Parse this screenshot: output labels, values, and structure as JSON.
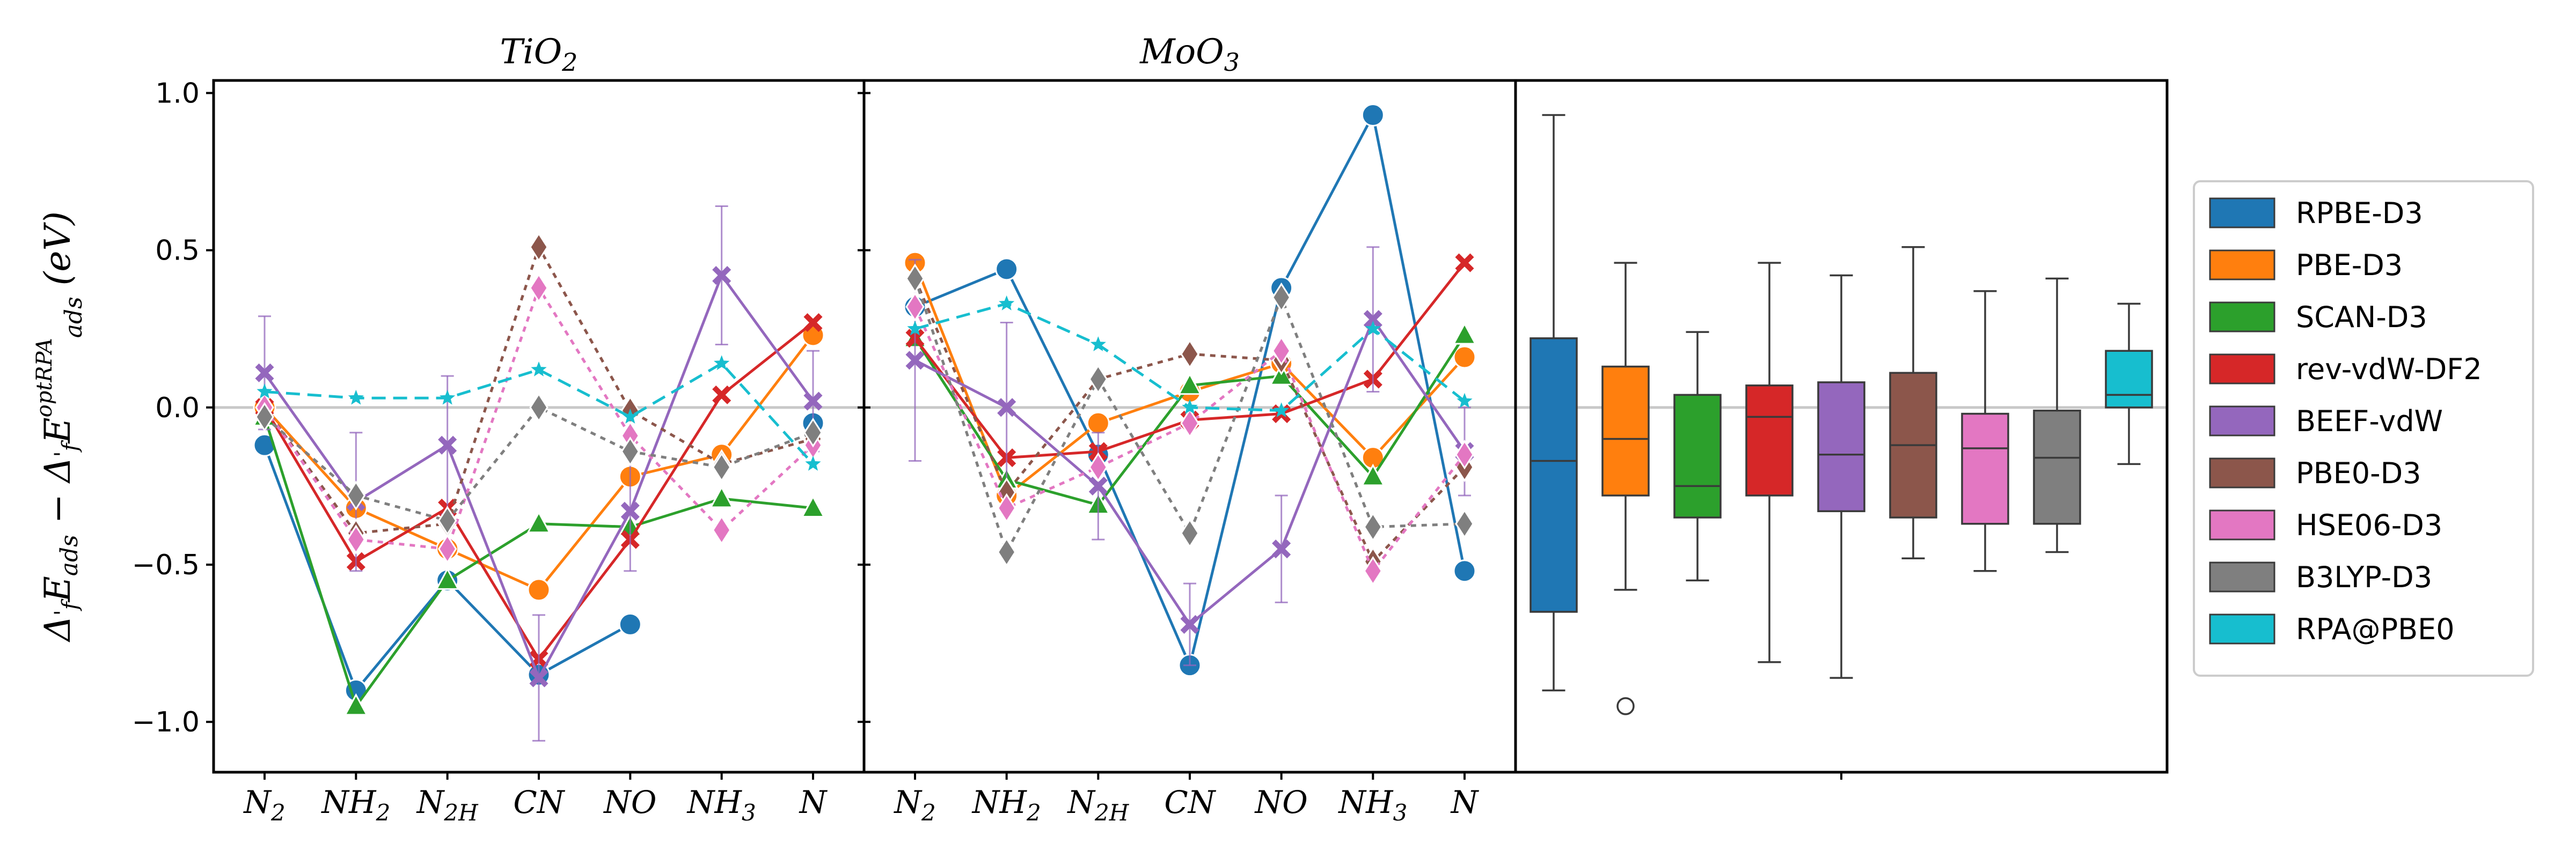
{
  "chart_data": {
    "type": "line",
    "ylabel": "Δ'_f E_ads − Δ'_f E_ads^optRPA (eV)",
    "ylim": [
      -1.16,
      1.04
    ],
    "yticks": [
      1.0,
      0.5,
      0.0,
      -0.5,
      -1.0
    ],
    "ytick_labels": [
      "1.0",
      "0.5",
      "0.0",
      "−0.5",
      "−1.0"
    ],
    "categories": [
      "N",
      "NH",
      "N",
      "CN",
      "NO",
      "NH",
      "N"
    ],
    "category_subscripts": [
      "2",
      "2",
      "2H",
      "",
      "",
      "3",
      ""
    ],
    "colors": {
      "RPBE-D3": "#1f77b4",
      "PBE-D3": "#ff7f0e",
      "SCAN-D3": "#2ca02c",
      "rev-vdW-DF2": "#d62728",
      "BEEF-vdW": "#9467bd",
      "PBE0-D3": "#8c564b",
      "HSE06-D3": "#e377c2",
      "B3LYP-D3": "#7f7f7f",
      "RPA@PBE0": "#17becf"
    },
    "panels": [
      {
        "title": "TiO",
        "title_subscript": "2",
        "series": [
          {
            "name": "RPBE-D3",
            "marker": "circle",
            "dash": "solid",
            "values": [
              -0.12,
              -0.9,
              -0.55,
              -0.85,
              -0.69,
              null,
              -0.05
            ]
          },
          {
            "name": "PBE-D3",
            "marker": "circle",
            "dash": "solid",
            "values": [
              0.0,
              -0.32,
              -0.45,
              -0.58,
              -0.22,
              -0.15,
              0.23
            ]
          },
          {
            "name": "SCAN-D3",
            "marker": "triangle",
            "dash": "solid",
            "values": [
              -0.03,
              -0.95,
              -0.55,
              -0.37,
              -0.38,
              -0.29,
              -0.32
            ]
          },
          {
            "name": "rev-vdW-DF2",
            "marker": "x",
            "dash": "solid",
            "values": [
              0.0,
              -0.49,
              -0.32,
              -0.8,
              -0.42,
              0.04,
              0.27
            ]
          },
          {
            "name": "BEEF-vdW",
            "marker": "x",
            "dash": "solid",
            "values": [
              0.11,
              -0.3,
              -0.12,
              -0.86,
              -0.33,
              0.42,
              0.02
            ],
            "errors": [
              0.18,
              0.22,
              0.22,
              0.2,
              0.19,
              0.22,
              0.16
            ]
          },
          {
            "name": "PBE0-D3",
            "marker": "diamond",
            "dash": "dotted",
            "values": [
              0.0,
              -0.4,
              -0.37,
              0.51,
              -0.01,
              -0.18,
              -0.1
            ]
          },
          {
            "name": "HSE06-D3",
            "marker": "diamond",
            "dash": "dotted",
            "values": [
              0.0,
              -0.42,
              -0.45,
              0.38,
              -0.09,
              -0.39,
              -0.12
            ]
          },
          {
            "name": "B3LYP-D3",
            "marker": "diamond",
            "dash": "dotted",
            "values": [
              -0.03,
              -0.28,
              -0.36,
              0.0,
              -0.14,
              -0.19,
              -0.08
            ]
          },
          {
            "name": "RPA@PBE0",
            "marker": "star",
            "dash": "dashed",
            "values": [
              0.05,
              0.03,
              0.03,
              0.12,
              -0.03,
              0.14,
              -0.18
            ]
          }
        ]
      },
      {
        "title": "MoO",
        "title_subscript": "3",
        "series": [
          {
            "name": "RPBE-D3",
            "marker": "circle",
            "dash": "solid",
            "values": [
              0.32,
              0.44,
              -0.15,
              -0.82,
              0.38,
              0.93,
              -0.52
            ]
          },
          {
            "name": "PBE-D3",
            "marker": "circle",
            "dash": "solid",
            "values": [
              0.46,
              -0.28,
              -0.05,
              0.05,
              0.14,
              -0.16,
              0.16
            ]
          },
          {
            "name": "SCAN-D3",
            "marker": "triangle",
            "dash": "solid",
            "values": [
              0.22,
              -0.23,
              -0.31,
              0.07,
              0.1,
              -0.22,
              0.23
            ]
          },
          {
            "name": "rev-vdW-DF2",
            "marker": "x",
            "dash": "solid",
            "values": [
              0.22,
              -0.16,
              -0.14,
              -0.04,
              -0.02,
              0.09,
              0.46
            ]
          },
          {
            "name": "BEEF-vdW",
            "marker": "x",
            "dash": "solid",
            "values": [
              0.15,
              0.0,
              -0.25,
              -0.69,
              -0.45,
              0.28,
              -0.14
            ],
            "errors": [
              0.32,
              0.27,
              0.17,
              0.13,
              0.17,
              0.23,
              0.14
            ]
          },
          {
            "name": "PBE0-D3",
            "marker": "diamond",
            "dash": "dotted",
            "values": [
              0.41,
              -0.27,
              0.09,
              0.17,
              0.15,
              -0.49,
              -0.19
            ]
          },
          {
            "name": "HSE06-D3",
            "marker": "diamond",
            "dash": "dotted",
            "values": [
              0.32,
              -0.32,
              -0.19,
              -0.05,
              0.18,
              -0.52,
              -0.15
            ]
          },
          {
            "name": "B3LYP-D3",
            "marker": "diamond",
            "dash": "dotted",
            "values": [
              0.41,
              -0.46,
              0.09,
              -0.4,
              0.35,
              -0.38,
              -0.37
            ]
          },
          {
            "name": "RPA@PBE0",
            "marker": "star",
            "dash": "dashed",
            "values": [
              0.25,
              0.33,
              0.2,
              0.0,
              -0.01,
              0.25,
              0.02
            ]
          }
        ]
      }
    ],
    "boxplot": {
      "type": "box",
      "series": [
        {
          "name": "RPBE-D3",
          "whisker_low": -0.9,
          "q1": -0.65,
          "median": -0.17,
          "q3": 0.22,
          "whisker_high": 0.93,
          "outliers": []
        },
        {
          "name": "PBE-D3",
          "whisker_low": -0.58,
          "q1": -0.28,
          "median": -0.1,
          "q3": 0.13,
          "whisker_high": 0.46,
          "outliers": [
            -0.95
          ]
        },
        {
          "name": "SCAN-D3",
          "whisker_low": -0.55,
          "q1": -0.35,
          "median": -0.25,
          "q3": 0.04,
          "whisker_high": 0.24,
          "outliers": []
        },
        {
          "name": "rev-vdW-DF2",
          "whisker_low": -0.81,
          "q1": -0.28,
          "median": -0.03,
          "q3": 0.07,
          "whisker_high": 0.46,
          "outliers": []
        },
        {
          "name": "BEEF-vdW",
          "whisker_low": -0.86,
          "q1": -0.33,
          "median": -0.15,
          "q3": 0.08,
          "whisker_high": 0.42,
          "outliers": []
        },
        {
          "name": "PBE0-D3",
          "whisker_low": -0.48,
          "q1": -0.35,
          "median": -0.12,
          "q3": 0.11,
          "whisker_high": 0.51,
          "outliers": []
        },
        {
          "name": "HSE06-D3",
          "whisker_low": -0.52,
          "q1": -0.37,
          "median": -0.13,
          "q3": -0.02,
          "whisker_high": 0.37,
          "outliers": []
        },
        {
          "name": "B3LYP-D3",
          "whisker_low": -0.46,
          "q1": -0.37,
          "median": -0.16,
          "q3": -0.01,
          "whisker_high": 0.41,
          "outliers": []
        },
        {
          "name": "RPA@PBE0",
          "whisker_low": -0.18,
          "q1": 0.0,
          "median": 0.04,
          "q3": 0.18,
          "whisker_high": 0.33,
          "outliers": []
        }
      ]
    },
    "legend": {
      "placement": "right",
      "entries": [
        "RPBE-D3",
        "PBE-D3",
        "SCAN-D3",
        "rev-vdW-DF2",
        "BEEF-vdW",
        "PBE0-D3",
        "HSE06-D3",
        "B3LYP-D3",
        "RPA@PBE0"
      ]
    },
    "reference_line": 0.0
  }
}
